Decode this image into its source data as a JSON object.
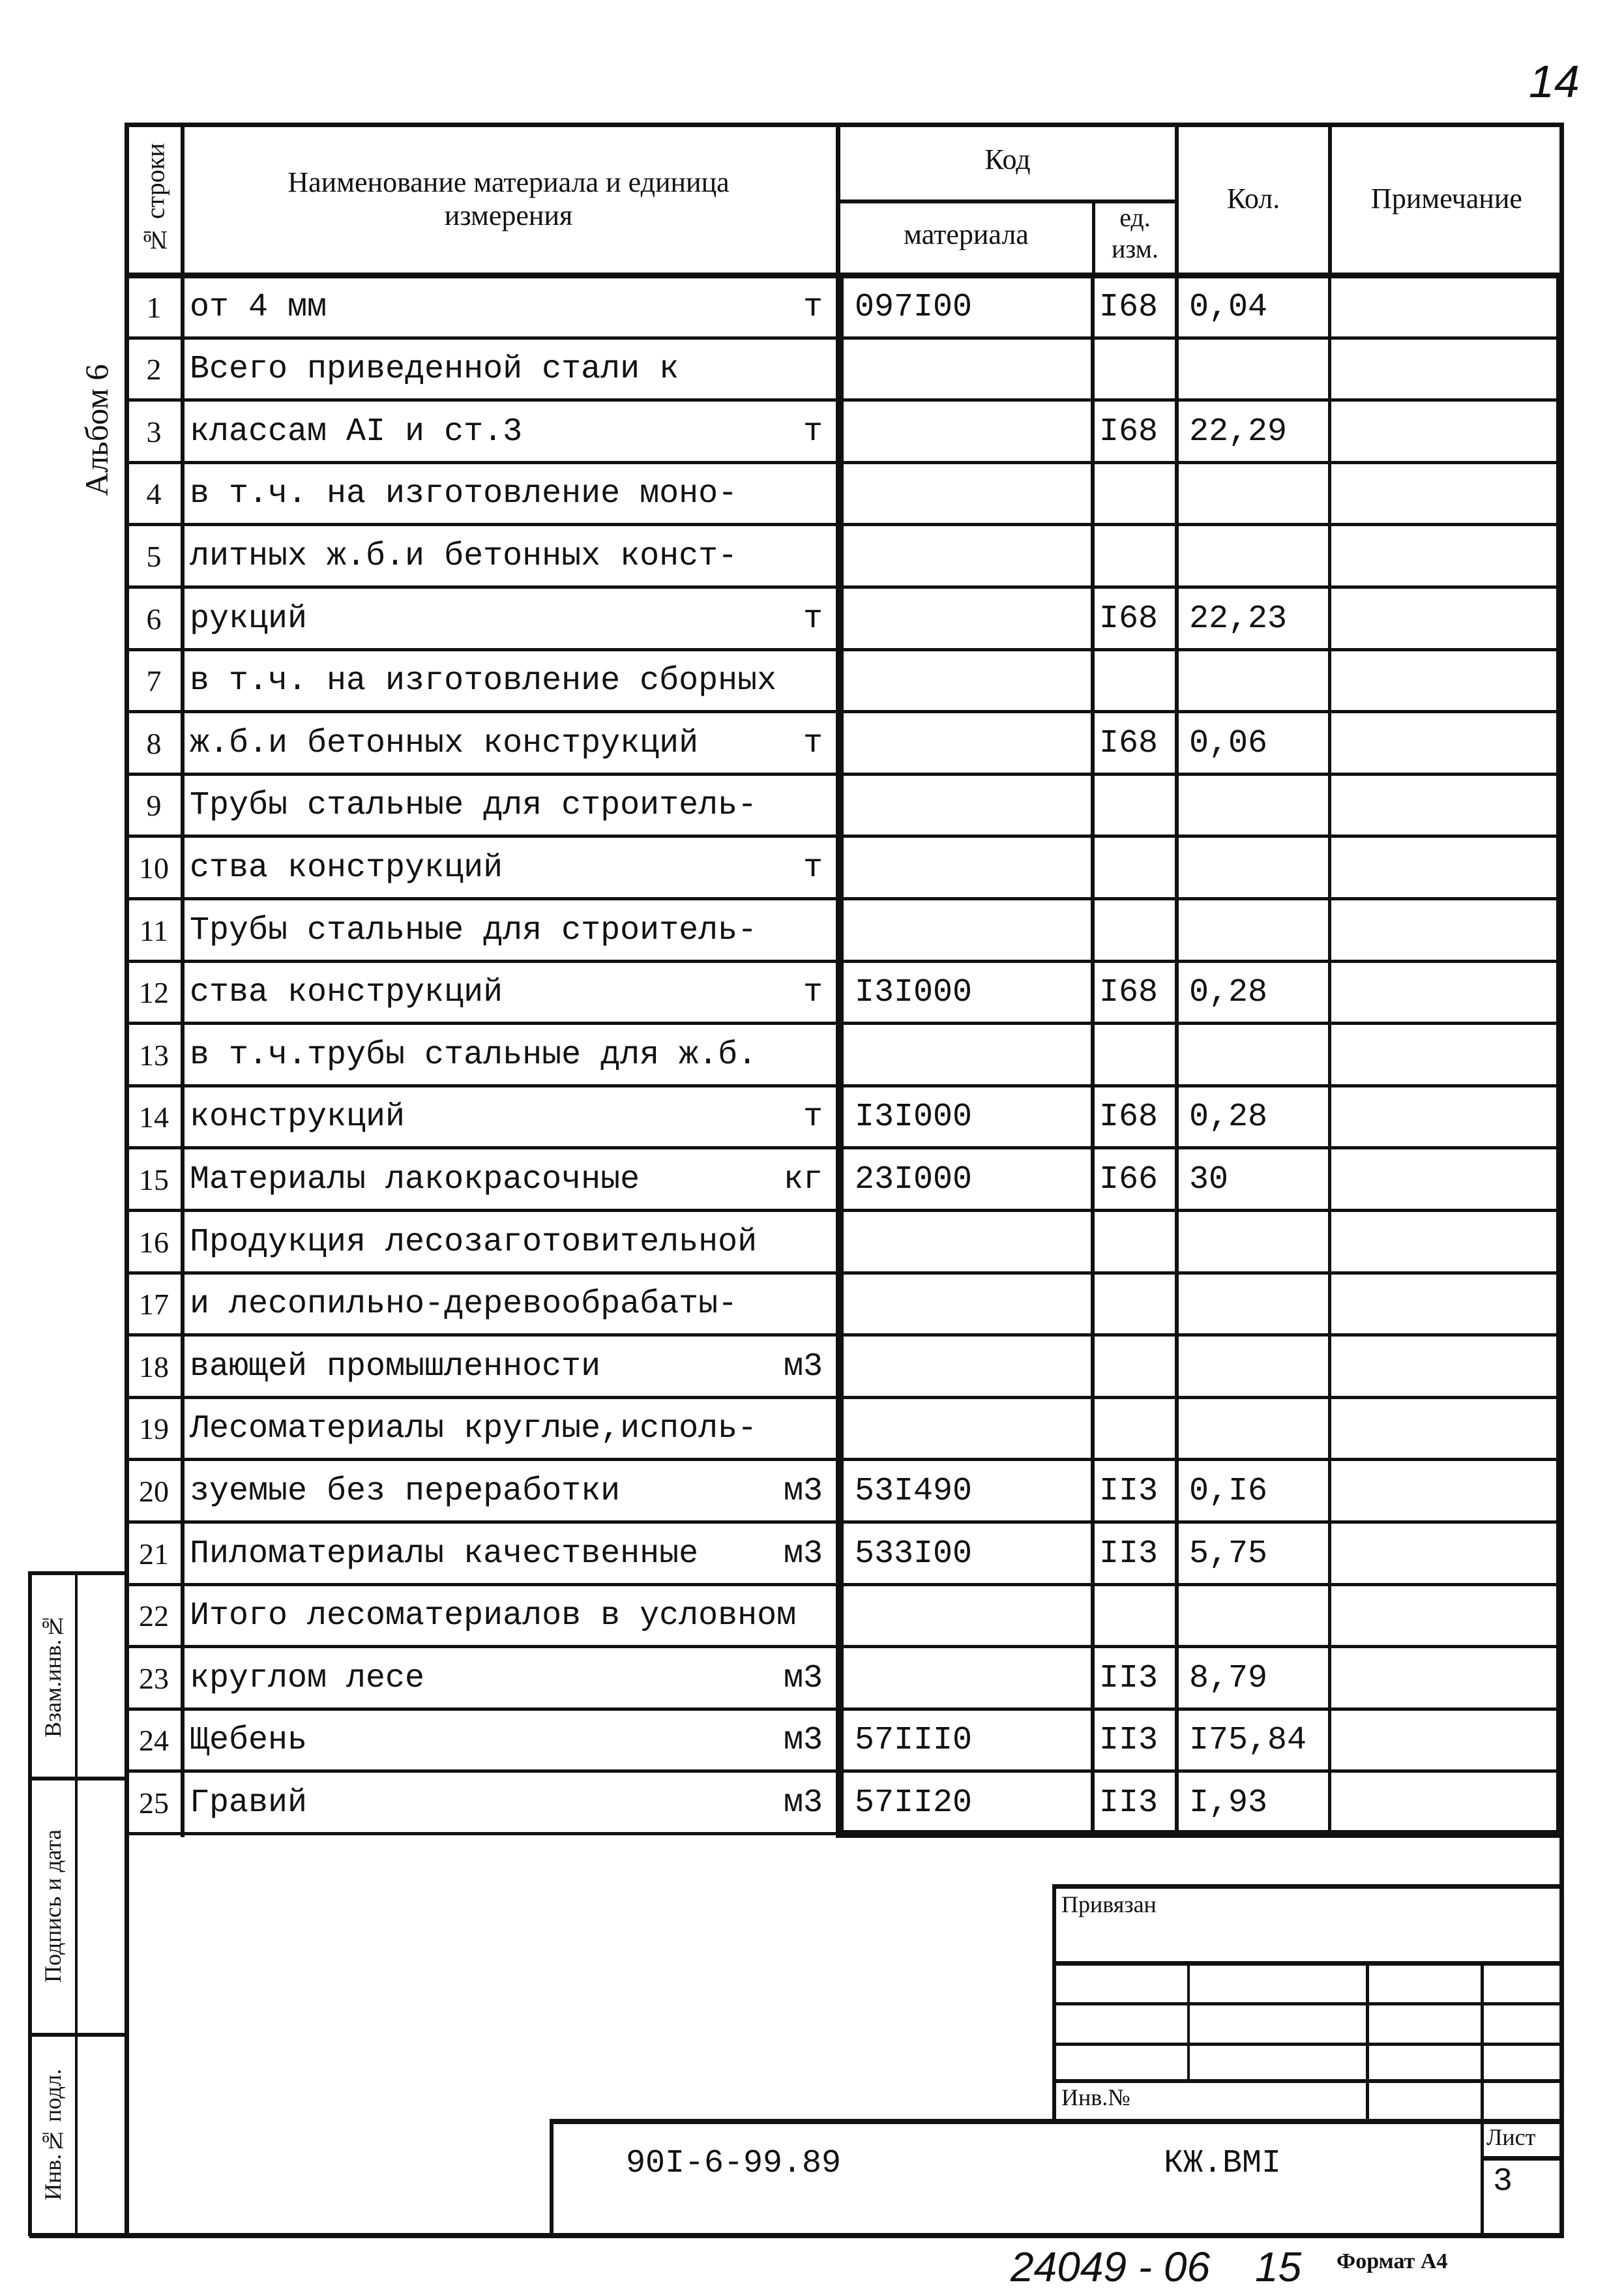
{
  "page_number": "14",
  "album_label": "Альбом 6",
  "header": {
    "row_no": "№ строки",
    "name": "Наименование материала и единица измерения",
    "code": "Код",
    "code_material": "материала",
    "code_unit": "ед. изм.",
    "qty": "Кол.",
    "note": "Примечание"
  },
  "rows": [
    {
      "n": "1",
      "name": "от 4 мм",
      "u": "т",
      "mat": "097I00",
      "unit": "I68",
      "qty": "0,04"
    },
    {
      "n": "2",
      "name": "Всего приведенной стали к",
      "u": "",
      "mat": "",
      "unit": "",
      "qty": ""
    },
    {
      "n": "3",
      "name": "классам AI и ст.3",
      "u": "т",
      "mat": "",
      "unit": "I68",
      "qty": "22,29"
    },
    {
      "n": "4",
      "name": "в т.ч. на изготовление моно-",
      "u": "",
      "mat": "",
      "unit": "",
      "qty": ""
    },
    {
      "n": "5",
      "name": "литных ж.б.и бетонных конст-",
      "u": "",
      "mat": "",
      "unit": "",
      "qty": ""
    },
    {
      "n": "6",
      "name": "рукций",
      "u": "т",
      "mat": "",
      "unit": "I68",
      "qty": "22,23"
    },
    {
      "n": "7",
      "name": "в т.ч. на изготовление сборных",
      "u": "",
      "mat": "",
      "unit": "",
      "qty": ""
    },
    {
      "n": "8",
      "name": "ж.б.и бетонных конструкций",
      "u": "т",
      "mat": "",
      "unit": "I68",
      "qty": "0,06"
    },
    {
      "n": "9",
      "name": "Трубы стальные для строитель-",
      "u": "",
      "mat": "",
      "unit": "",
      "qty": ""
    },
    {
      "n": "10",
      "name": "ства конструкций",
      "u": "т",
      "mat": "",
      "unit": "",
      "qty": ""
    },
    {
      "n": "11",
      "name": "Трубы стальные для строитель-",
      "u": "",
      "mat": "",
      "unit": "",
      "qty": ""
    },
    {
      "n": "12",
      "name": "ства конструкций",
      "u": "т",
      "mat": "I3I000",
      "unit": "I68",
      "qty": "0,28"
    },
    {
      "n": "13",
      "name": "в т.ч.трубы стальные для ж.б.",
      "u": "",
      "mat": "",
      "unit": "",
      "qty": ""
    },
    {
      "n": "14",
      "name": "конструкций",
      "u": "т",
      "mat": "I3I000",
      "unit": "I68",
      "qty": "0,28"
    },
    {
      "n": "15",
      "name": "Материалы лакокрасочные",
      "u": "кг",
      "mat": "23I000",
      "unit": "I66",
      "qty": "30"
    },
    {
      "n": "16",
      "name": "Продукция лесозаготовительной",
      "u": "",
      "mat": "",
      "unit": "",
      "qty": ""
    },
    {
      "n": "17",
      "name": "и лесопильно-деревообрабаты-",
      "u": "",
      "mat": "",
      "unit": "",
      "qty": ""
    },
    {
      "n": "18",
      "name": "вающей промышленности",
      "u": "м3",
      "mat": "",
      "unit": "",
      "qty": ""
    },
    {
      "n": "19",
      "name": "Лесоматериалы круглые,исполь-",
      "u": "",
      "mat": "",
      "unit": "",
      "qty": ""
    },
    {
      "n": "20",
      "name": "зуемые без переработки",
      "u": "м3",
      "mat": "53I490",
      "unit": "II3",
      "qty": "0,I6"
    },
    {
      "n": "21",
      "name": "Пиломатериалы качественные",
      "u": "м3",
      "mat": "533I00",
      "unit": "II3",
      "qty": "5,75"
    },
    {
      "n": "22",
      "name": "Итого лесоматериалов в условном",
      "u": "",
      "mat": "",
      "unit": "",
      "qty": ""
    },
    {
      "n": "23",
      "name": "круглом лесе",
      "u": "м3",
      "mat": "",
      "unit": "II3",
      "qty": "8,79"
    },
    {
      "n": "24",
      "name": "Щебень",
      "u": "м3",
      "mat": "57III0",
      "unit": "II3",
      "qty": "I75,84"
    },
    {
      "n": "25",
      "name": "Гравий",
      "u": "м3",
      "mat": "57II20",
      "unit": "II3",
      "qty": "I,93"
    }
  ],
  "side_stamps": {
    "replace_inv": "Взам.инв.№",
    "sign_date": "Подпись и дата",
    "orig_inv": "Инв.№ подл."
  },
  "title_block": {
    "bound": "Привязан",
    "inv_no": "Инв.№",
    "doc_code": "90I-6-99.89",
    "mark": "КЖ.ВМI",
    "sheet_label": "Лист",
    "sheet_no": "3"
  },
  "footer": {
    "stamp_number": "24049 - 06",
    "stamp_page": "15",
    "format": "Формат А4"
  }
}
